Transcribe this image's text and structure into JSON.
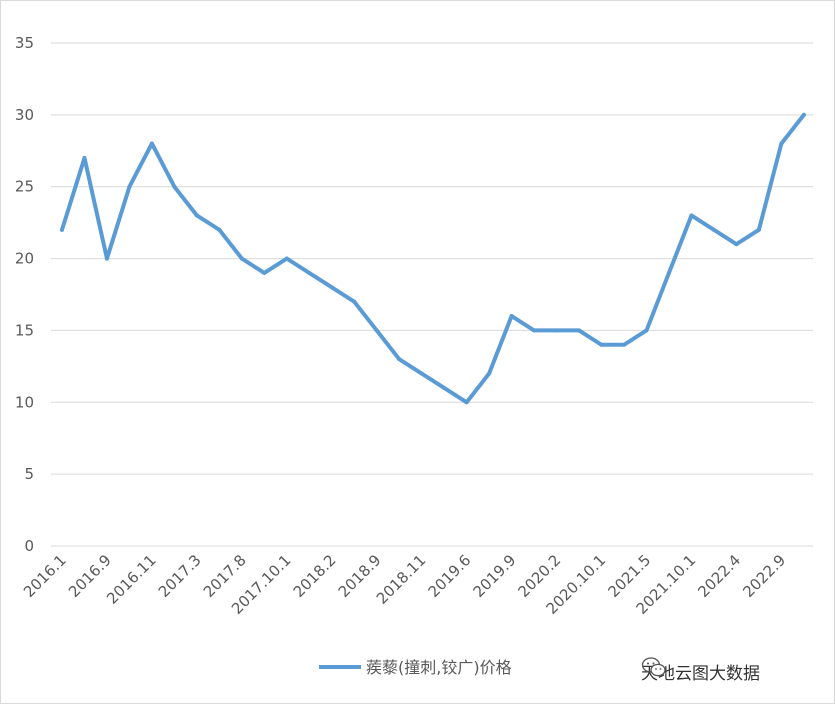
{
  "chart_data": {
    "type": "line",
    "title": "",
    "xlabel": "",
    "ylabel": "",
    "ylim": [
      0,
      35
    ],
    "yticks": [
      0,
      5,
      10,
      15,
      20,
      25,
      30,
      35
    ],
    "grid": "horizontal",
    "legend_position": "bottom",
    "x_tick_labels": [
      "2016.1",
      "2016.9",
      "2016.11",
      "2017.3",
      "2017.8",
      "2017.10.1",
      "2018.2",
      "2018.9",
      "2018.11",
      "2019.6",
      "2019.9",
      "2020.2",
      "2020.10.1",
      "2021.5",
      "2021.10.1",
      "2022.4",
      "2022.9"
    ],
    "series": [
      {
        "name": "蒺藜(撞刺,铰广)价格",
        "color": "#5b9bd5",
        "values": [
          22,
          27,
          20,
          25,
          28,
          25,
          23,
          22,
          20,
          19,
          20,
          19,
          18,
          17,
          15,
          13,
          12,
          11,
          10,
          12,
          16,
          15,
          15,
          15,
          14,
          14,
          15,
          19,
          23,
          22,
          21,
          22,
          28,
          30
        ]
      }
    ]
  },
  "watermark": {
    "text": "天地云图大数据",
    "icon": "wechat-icon"
  }
}
